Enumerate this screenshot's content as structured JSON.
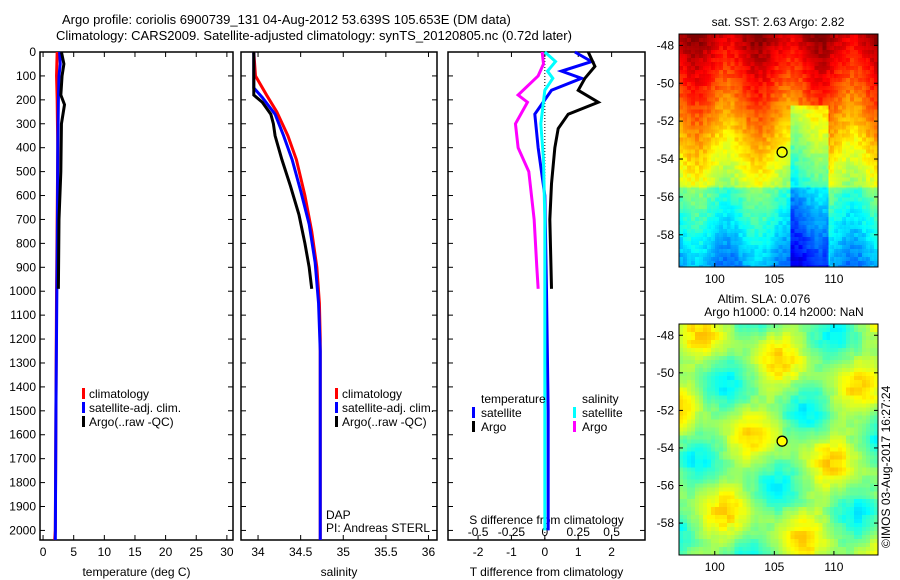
{
  "title_line1": "Argo profile: coriolis 6900739_131 04-Aug-2012 53.639S 105.653E (DM data)",
  "title_line2": "Climatology: CARS2009. Satellite-adjusted climatology: synTS_20120805.nc (0.72d later)",
  "colors": {
    "climatology": "#ff0000",
    "satellite": "#0000ff",
    "argo": "#000000",
    "sal_sat": "#00ffff",
    "sal_argo": "#ff00ff"
  },
  "chart_data": [
    {
      "type": "line",
      "name": "temperature",
      "xlabel": "temperature (deg C)",
      "xlim": [
        -0.5,
        31
      ],
      "ylim": [
        2040,
        0
      ],
      "xticks": [
        "0",
        "5",
        "10",
        "15",
        "20",
        "25",
        "30"
      ],
      "yticks": [
        "0",
        "100",
        "200",
        "300",
        "400",
        "500",
        "600",
        "700",
        "800",
        "900",
        "1000",
        "1100",
        "1200",
        "1300",
        "1400",
        "1500",
        "1600",
        "1700",
        "1800",
        "1900",
        "2000"
      ],
      "legend": [
        "climatology",
        "satellite-adj. clim.",
        "Argo(..raw -QC)"
      ],
      "series": [
        {
          "name": "climatology",
          "color": "#ff0000",
          "points": [
            [
              2.3,
              0
            ],
            [
              2.2,
              100
            ],
            [
              2.3,
              200
            ],
            [
              2.4,
              400
            ],
            [
              2.3,
              700
            ],
            [
              2.2,
              1000
            ],
            [
              2.1,
              1500
            ],
            [
              2.0,
              2000
            ],
            [
              1.9,
              2040
            ]
          ]
        },
        {
          "name": "satellite-adj. clim.",
          "color": "#0000ff",
          "points": [
            [
              2.7,
              0
            ],
            [
              2.8,
              50
            ],
            [
              2.6,
              100
            ],
            [
              2.5,
              200
            ],
            [
              2.4,
              400
            ],
            [
              2.35,
              700
            ],
            [
              2.25,
              1000
            ],
            [
              2.1,
              1500
            ],
            [
              2.0,
              2040
            ]
          ]
        },
        {
          "name": "Argo",
          "color": "#000000",
          "points": [
            [
              3.0,
              0
            ],
            [
              3.4,
              50
            ],
            [
              3.1,
              100
            ],
            [
              2.9,
              180
            ],
            [
              3.5,
              220
            ],
            [
              3.0,
              300
            ],
            [
              2.9,
              500
            ],
            [
              2.6,
              700
            ],
            [
              2.5,
              990
            ]
          ]
        }
      ]
    },
    {
      "type": "line",
      "name": "salinity",
      "xlabel": "salinity",
      "xlim": [
        33.8,
        36.1
      ],
      "ylim": [
        2040,
        0
      ],
      "xticks": [
        "34",
        "34.5",
        "35",
        "35.5",
        "36"
      ],
      "legend": [
        "climatology",
        "satellite-adj. clim.",
        "Argo(..raw -QC)"
      ],
      "annotation": [
        "DAP",
        "PI: Andreas STERL"
      ],
      "series": [
        {
          "name": "climatology",
          "color": "#ff0000",
          "points": [
            [
              33.95,
              0
            ],
            [
              33.97,
              100
            ],
            [
              34.1,
              180
            ],
            [
              34.22,
              250
            ],
            [
              34.35,
              350
            ],
            [
              34.45,
              450
            ],
            [
              34.55,
              600
            ],
            [
              34.63,
              750
            ],
            [
              34.69,
              900
            ],
            [
              34.72,
              1050
            ],
            [
              34.73,
              1200
            ],
            [
              34.73,
              2040
            ]
          ]
        },
        {
          "name": "satellite-adj. clim.",
          "color": "#0000ff",
          "points": [
            [
              33.95,
              0
            ],
            [
              33.95,
              150
            ],
            [
              34.05,
              190
            ],
            [
              34.2,
              260
            ],
            [
              34.3,
              350
            ],
            [
              34.4,
              450
            ],
            [
              34.5,
              580
            ],
            [
              34.6,
              720
            ],
            [
              34.67,
              880
            ],
            [
              34.71,
              1050
            ],
            [
              34.73,
              1250
            ],
            [
              34.73,
              2040
            ]
          ]
        },
        {
          "name": "Argo",
          "color": "#000000",
          "points": [
            [
              33.95,
              0
            ],
            [
              33.95,
              180
            ],
            [
              34.05,
              210
            ],
            [
              34.15,
              260
            ],
            [
              34.18,
              300
            ],
            [
              34.2,
              350
            ],
            [
              34.28,
              450
            ],
            [
              34.38,
              560
            ],
            [
              34.48,
              680
            ],
            [
              34.55,
              800
            ],
            [
              34.6,
              900
            ],
            [
              34.63,
              990
            ]
          ]
        }
      ]
    },
    {
      "type": "line",
      "name": "difference",
      "xlabel": "T difference from climatology",
      "x2label": "S difference from climatology",
      "xlim": [
        -2.9,
        3.0
      ],
      "ylim": [
        2040,
        0
      ],
      "xticks": [
        "-2",
        "-1",
        "0",
        "1",
        "2"
      ],
      "x2ticks": [
        "-0.5",
        "-0.25",
        "0",
        "0.25",
        "0.5"
      ],
      "legend_titles": [
        "temperature",
        "salinity"
      ],
      "legend": [
        "satellite",
        "Argo",
        "satellite",
        "Argo"
      ],
      "series": [
        {
          "name": "T satellite",
          "color": "#0000ff",
          "units": "T",
          "points": [
            [
              0.9,
              0
            ],
            [
              1.4,
              40
            ],
            [
              0.5,
              80
            ],
            [
              1.1,
              110
            ],
            [
              0.2,
              160
            ],
            [
              -0.3,
              260
            ],
            [
              -0.2,
              400
            ],
            [
              0,
              600
            ],
            [
              0.05,
              1000
            ],
            [
              0.1,
              1500
            ],
            [
              0.1,
              2000
            ]
          ]
        },
        {
          "name": "T Argo",
          "color": "#000000",
          "units": "T",
          "points": [
            [
              1.3,
              0
            ],
            [
              1.5,
              60
            ],
            [
              1.2,
              110
            ],
            [
              1.0,
              160
            ],
            [
              1.6,
              210
            ],
            [
              0.7,
              260
            ],
            [
              0.4,
              320
            ],
            [
              0.3,
              400
            ],
            [
              0.2,
              550
            ],
            [
              0.15,
              700
            ],
            [
              0.2,
              990
            ]
          ]
        },
        {
          "name": "S satellite",
          "color": "#00ffff",
          "units": "S",
          "points": [
            [
              0.0,
              0
            ],
            [
              0.08,
              40
            ],
            [
              0.02,
              80
            ],
            [
              0.06,
              110
            ],
            [
              0.0,
              160
            ],
            [
              -0.03,
              300
            ],
            [
              -0.01,
              450
            ],
            [
              0,
              700
            ],
            [
              0,
              1500
            ],
            [
              0,
              2000
            ]
          ]
        },
        {
          "name": "S Argo",
          "color": "#ff00ff",
          "units": "S",
          "points": [
            [
              -0.02,
              0
            ],
            [
              -0.01,
              50
            ],
            [
              -0.05,
              100
            ],
            [
              -0.2,
              180
            ],
            [
              -0.13,
              210
            ],
            [
              -0.22,
              300
            ],
            [
              -0.2,
              400
            ],
            [
              -0.12,
              500
            ],
            [
              -0.08,
              700
            ],
            [
              -0.06,
              900
            ],
            [
              -0.05,
              990
            ]
          ]
        }
      ]
    },
    {
      "type": "heatmap",
      "name": "sst-map",
      "title": "sat. SST: 2.63 Argo: 2.82",
      "xlim": [
        97,
        113.7
      ],
      "ylim": [
        -59.7,
        -47.4
      ],
      "xticks": [
        "100",
        "105",
        "110"
      ],
      "yticks": [
        "-48",
        "-50",
        "-52",
        "-54",
        "-56",
        "-58"
      ],
      "marker": [
        105.653,
        -53.639
      ]
    },
    {
      "type": "heatmap",
      "name": "sla-map",
      "title": [
        "Altim. SLA: 0.076",
        "Argo h1000: 0.14 h2000: NaN"
      ],
      "xlim": [
        97,
        113.7
      ],
      "ylim": [
        -59.7,
        -47.4
      ],
      "xticks": [
        "100",
        "105",
        "110"
      ],
      "yticks": [
        "-48",
        "-50",
        "-52",
        "-54",
        "-56",
        "-58"
      ],
      "marker": [
        105.653,
        -53.639
      ]
    }
  ],
  "watermark": "©IMOS 03-Aug-2017 16:27:24"
}
